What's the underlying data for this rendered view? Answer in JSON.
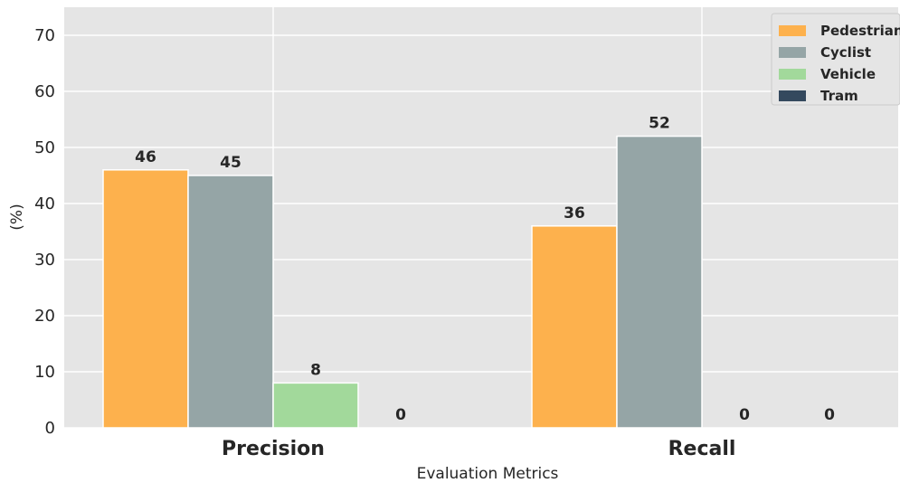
{
  "chart_data": {
    "type": "bar",
    "title": "",
    "xlabel": "Evaluation Metrics",
    "ylabel": "(%)",
    "ylim": [
      0,
      75
    ],
    "yticks": [
      0,
      10,
      20,
      30,
      40,
      50,
      60,
      70
    ],
    "categories": [
      "Precision",
      "Recall"
    ],
    "series": [
      {
        "name": "Pedestrian",
        "color": "#fdb14d",
        "values": [
          46,
          36
        ]
      },
      {
        "name": "Cyclist",
        "color": "#95a5a6",
        "values": [
          45,
          52
        ]
      },
      {
        "name": "Vehicle",
        "color": "#a2d99b",
        "values": [
          8,
          0
        ]
      },
      {
        "name": "Tram",
        "color": "#34495e",
        "values": [
          0,
          0
        ]
      }
    ],
    "grid": true,
    "legend_position": "top-right",
    "background_color": "#e5e5e5"
  }
}
